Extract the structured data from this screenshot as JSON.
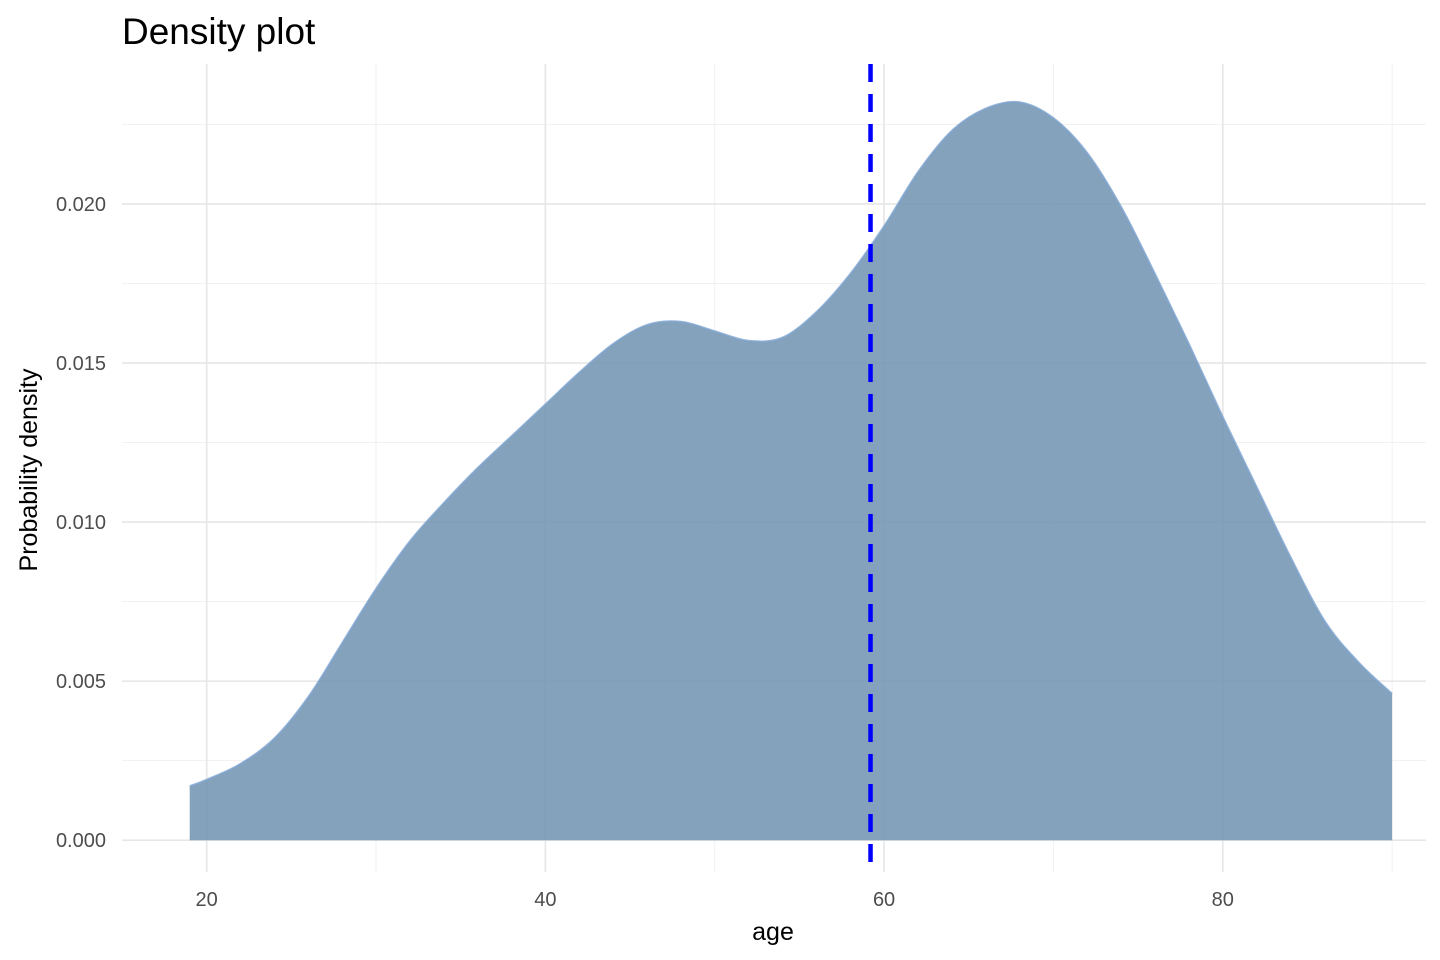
{
  "chart_data": {
    "type": "area",
    "title": "Density plot",
    "xlabel": "age",
    "ylabel": "Probability density",
    "xlim": [
      15,
      92
    ],
    "ylim": [
      -0.001,
      0.0244
    ],
    "x_ticks": [
      20,
      40,
      60,
      80
    ],
    "y_ticks": [
      0.0,
      0.005,
      0.01,
      0.015,
      0.02
    ],
    "x_tick_labels": [
      "20",
      "40",
      "60",
      "80"
    ],
    "y_tick_labels": [
      "0.000",
      "0.005",
      "0.010",
      "0.015",
      "0.020"
    ],
    "grid": true,
    "legend": "none",
    "series": [
      {
        "x": [
          19,
          20,
          22,
          24,
          26,
          28,
          30,
          32,
          34,
          36,
          38,
          40,
          42,
          44,
          46,
          48,
          50,
          52,
          54,
          56,
          58,
          60,
          62,
          64,
          66,
          68,
          70,
          72,
          74,
          76,
          78,
          80,
          82,
          84,
          86,
          88,
          90
        ],
        "y": [
          0.0017,
          0.0019,
          0.0024,
          0.0032,
          0.0045,
          0.0062,
          0.0079,
          0.0094,
          0.0106,
          0.0117,
          0.0127,
          0.0137,
          0.0147,
          0.0156,
          0.0162,
          0.0163,
          0.016,
          0.0157,
          0.0158,
          0.0166,
          0.0178,
          0.0193,
          0.021,
          0.0223,
          0.023,
          0.0232,
          0.0227,
          0.0216,
          0.0199,
          0.0178,
          0.0156,
          0.0133,
          0.0111,
          0.0089,
          0.0069,
          0.0056,
          0.0046
        ],
        "fill": "#7294b1",
        "outline": "#7ea4cf"
      }
    ],
    "reference_line": {
      "x": 59.2,
      "color": "#0000ff",
      "style": "dashed"
    }
  }
}
